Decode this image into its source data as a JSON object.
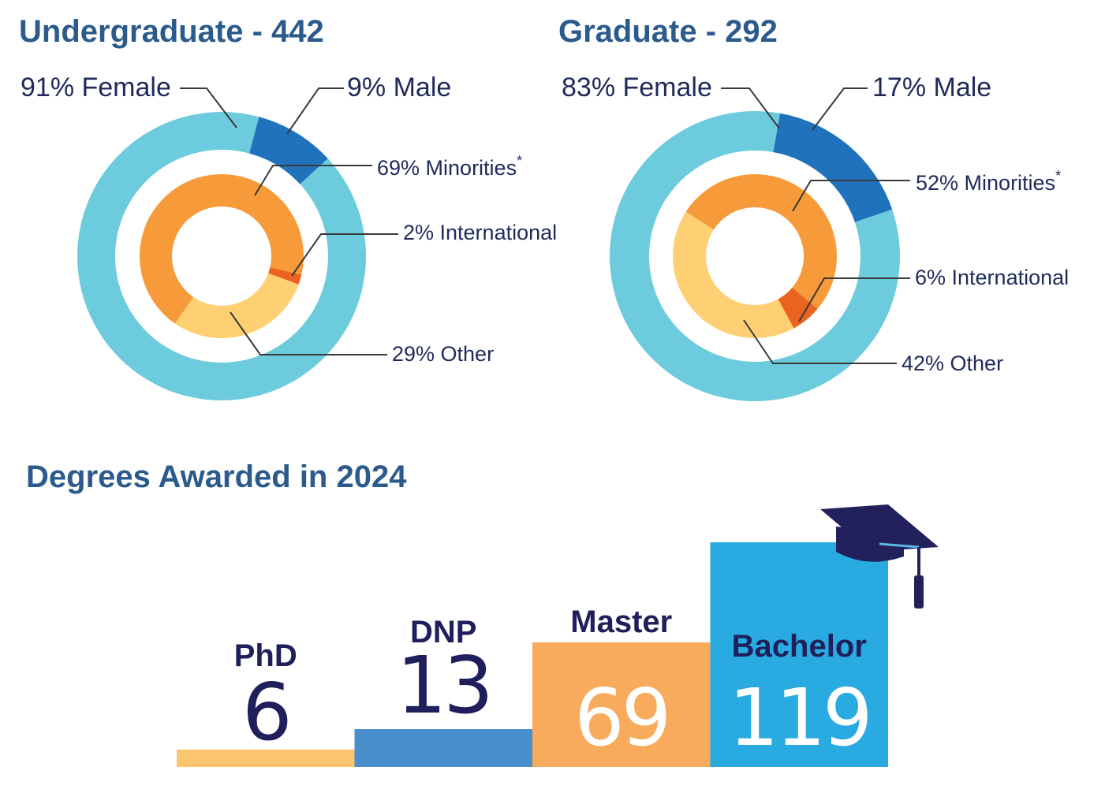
{
  "colors": {
    "outer_female": "#6ccbdc",
    "outer_male": "#1f72bb",
    "minorities": "#f79a3a",
    "international": "#ea6420",
    "other": "#ffd073",
    "leader": "#3a3a3a",
    "label": "#1f2a5a",
    "title": "#2b5b8c"
  },
  "chart_data": [
    {
      "type": "pie",
      "title": "Undergraduate - 442",
      "outer": [
        {
          "name": "Female",
          "label": "91% Female",
          "value": 91,
          "color": "#6ccbdc"
        },
        {
          "name": "Male",
          "label": "9% Male",
          "value": 9,
          "color": "#1f72bb"
        }
      ],
      "inner": [
        {
          "name": "Minorities",
          "label": "69% Minorities",
          "value": 69,
          "color": "#f79a3a",
          "asterisk": "*"
        },
        {
          "name": "International",
          "label": "2% International",
          "value": 2,
          "color": "#ea6420"
        },
        {
          "name": "Other",
          "label": "29% Other",
          "value": 29,
          "color": "#ffd073"
        }
      ]
    },
    {
      "type": "pie",
      "title": "Graduate - 292",
      "outer": [
        {
          "name": "Female",
          "label": "83% Female",
          "value": 83,
          "color": "#6ccbdc"
        },
        {
          "name": "Male",
          "label": "17% Male",
          "value": 17,
          "color": "#1f72bb"
        }
      ],
      "inner": [
        {
          "name": "Minorities",
          "label": "52% Minorities",
          "value": 52,
          "color": "#f79a3a",
          "asterisk": "*"
        },
        {
          "name": "International",
          "label": "6% International",
          "value": 6,
          "color": "#ea6420"
        },
        {
          "name": "Other",
          "label": "42% Other",
          "value": 42,
          "color": "#ffd073"
        }
      ]
    },
    {
      "type": "bar",
      "title": "Degrees Awarded in 2024",
      "categories": [
        "PhD",
        "DNP",
        "Master",
        "Bachelor"
      ],
      "values": [
        6,
        13,
        69,
        119
      ],
      "value_labels": [
        "6",
        "13",
        "69",
        "119"
      ],
      "colors": [
        "#fbc46f",
        "#4a8fcb",
        "#f8ab5c",
        "#29abe2"
      ],
      "ylim": [
        0,
        119
      ],
      "decoration": "graduation-cap-icon"
    }
  ]
}
